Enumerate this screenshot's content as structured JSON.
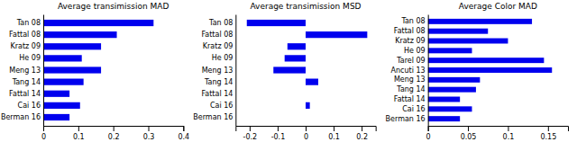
{
  "chart_data": [
    {
      "type": "bar",
      "orientation": "horizontal",
      "title": "Average transimission MAD",
      "categories": [
        "Tan 08",
        "Fattal 08",
        "Kratz 09",
        "He 09",
        "Meng 13",
        "Tang 14",
        "Fattal 14",
        "Cai 16",
        "Berman 16"
      ],
      "values": [
        0.315,
        0.21,
        0.165,
        0.11,
        0.165,
        0.115,
        0.075,
        0.105,
        0.075
      ],
      "color": "#0000ee",
      "xlim": [
        0,
        0.4
      ],
      "xticks": [
        0,
        0.1,
        0.2,
        0.3,
        0.4
      ]
    },
    {
      "type": "bar",
      "orientation": "horizontal",
      "title": "Average transimission MSD",
      "categories": [
        "Tan 08",
        "Fattal 08",
        "Kratz 09",
        "He 09",
        "Meng 13",
        "Tang 14",
        "Fattal 14",
        "Cai 16",
        "Berman 16"
      ],
      "values": [
        -0.21,
        0.22,
        -0.065,
        -0.075,
        -0.115,
        0.045,
        0.0,
        0.015,
        0.0
      ],
      "color": "#0000ee",
      "xlim": [
        -0.25,
        0.25
      ],
      "xticks": [
        -0.2,
        -0.1,
        0,
        0.1,
        0.2
      ]
    },
    {
      "type": "bar",
      "orientation": "horizontal",
      "title": "Average Color MAD",
      "categories": [
        "Tan 08",
        "Fattal 08",
        "Kratz 09",
        "He 09",
        "Tarel 09",
        "Ancuti 13",
        "Meng 13",
        "Tang 14",
        "Fattal 14",
        "Cai 16",
        "Berman 16"
      ],
      "values": [
        0.13,
        0.075,
        0.1,
        0.055,
        0.145,
        0.155,
        0.065,
        0.06,
        0.04,
        0.055,
        0.04
      ],
      "color": "#0000ee",
      "xlim": [
        0,
        0.175
      ],
      "xticks": [
        0,
        0.05,
        0.1,
        0.15
      ]
    }
  ]
}
